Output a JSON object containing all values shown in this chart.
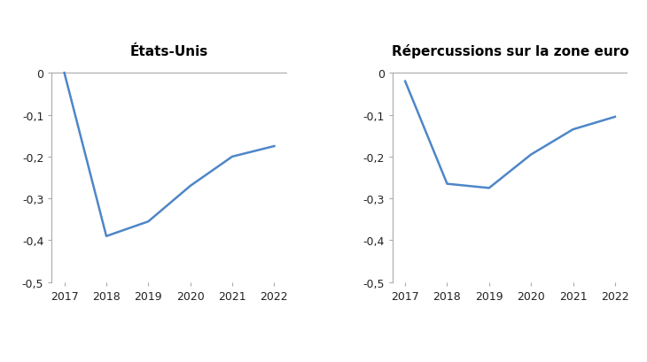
{
  "us_years": [
    2017,
    2018,
    2019,
    2020,
    2021,
    2022
  ],
  "us_values": [
    0.0,
    -0.39,
    -0.355,
    -0.27,
    -0.2,
    -0.175
  ],
  "ze_years": [
    2017,
    2018,
    2019,
    2020,
    2021,
    2022
  ],
  "ze_values": [
    -0.02,
    -0.265,
    -0.275,
    -0.195,
    -0.135,
    -0.105
  ],
  "title_us": "États-Unis",
  "title_ze": "Répercussions sur la zone euro",
  "ylim": [
    -0.5,
    0.02
  ],
  "yticks": [
    0,
    -0.1,
    -0.2,
    -0.3,
    -0.4,
    -0.5
  ],
  "ytick_labels": [
    "0",
    "-0,1",
    "-0,2",
    "-0,3",
    "-0,4",
    "-0,5"
  ],
  "line_color": "#4e86c8",
  "line_width": 1.8,
  "title_fontsize": 11,
  "tick_fontsize": 9,
  "background_color": "#ffffff",
  "spine_color": "#aaaaaa",
  "hline_color": "#aaaaaa"
}
